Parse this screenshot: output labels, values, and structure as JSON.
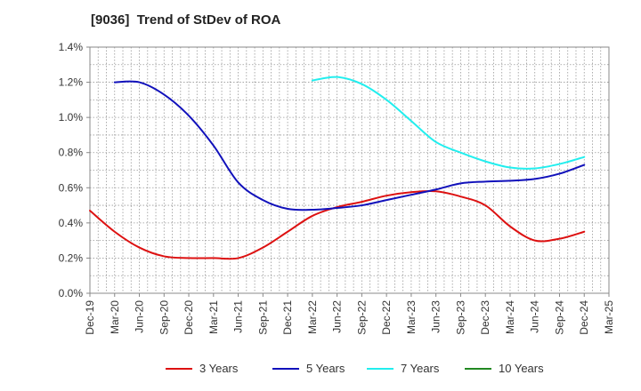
{
  "chart_data": {
    "type": "line",
    "title": "[9036]  Trend of StDev of ROA",
    "xlabel": "",
    "ylabel": "",
    "categories": [
      "Dec-19",
      "Mar-20",
      "Jun-20",
      "Sep-20",
      "Dec-20",
      "Mar-21",
      "Jun-21",
      "Sep-21",
      "Dec-21",
      "Mar-22",
      "Jun-22",
      "Sep-22",
      "Dec-22",
      "Mar-23",
      "Jun-23",
      "Sep-23",
      "Dec-23",
      "Mar-24",
      "Jun-24",
      "Sep-24",
      "Dec-24",
      "Mar-25"
    ],
    "ylim": [
      0,
      1.4
    ],
    "y_ticks": [
      "0.0%",
      "0.2%",
      "0.4%",
      "0.6%",
      "0.8%",
      "1.0%",
      "1.2%",
      "1.4%"
    ],
    "grid": true,
    "legend_position": "bottom",
    "series": [
      {
        "name": "3 Years",
        "color": "#dd1111",
        "values": [
          0.47,
          0.35,
          0.26,
          0.21,
          0.2,
          0.2,
          0.2,
          0.26,
          0.35,
          0.44,
          0.49,
          0.52,
          0.555,
          0.575,
          0.58,
          0.55,
          0.5,
          0.38,
          0.3,
          0.31,
          0.35,
          null
        ]
      },
      {
        "name": "5 Years",
        "color": "#1111bb",
        "values": [
          null,
          1.2,
          1.2,
          1.13,
          1.01,
          0.84,
          0.63,
          0.53,
          0.48,
          0.475,
          0.485,
          0.5,
          0.53,
          0.56,
          0.59,
          0.625,
          0.635,
          0.64,
          0.65,
          0.68,
          0.73,
          null
        ]
      },
      {
        "name": "7 Years",
        "color": "#22eeee",
        "values": [
          null,
          null,
          null,
          null,
          null,
          null,
          null,
          null,
          null,
          1.21,
          1.23,
          1.19,
          1.1,
          0.98,
          0.86,
          0.8,
          0.75,
          0.715,
          0.71,
          0.735,
          0.775,
          null
        ]
      },
      {
        "name": "10 Years",
        "color": "#228822",
        "values": [
          null,
          null,
          null,
          null,
          null,
          null,
          null,
          null,
          null,
          null,
          null,
          null,
          null,
          null,
          null,
          null,
          null,
          null,
          null,
          null,
          null,
          null
        ]
      }
    ]
  }
}
